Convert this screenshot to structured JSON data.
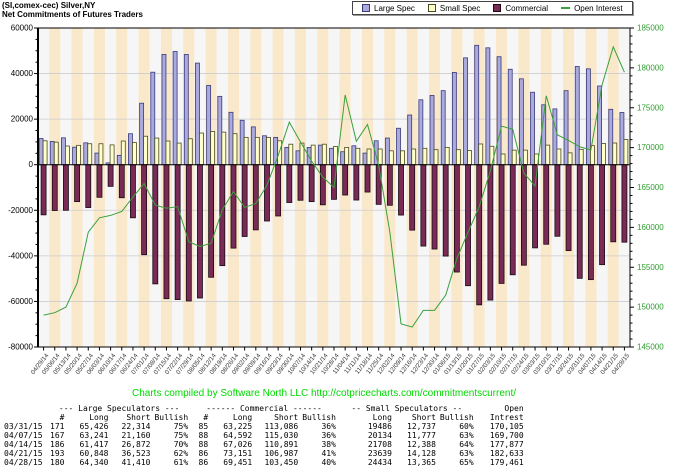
{
  "title": {
    "line1": "(SI,comex-cec) Silver,NY",
    "line2": "Net Commitments of Futures Traders"
  },
  "legend": {
    "items": [
      {
        "label": "Large Spec",
        "color": "#AAAADD",
        "border": "#3A3A7A"
      },
      {
        "label": "Small Spec",
        "color": "#FFFFCC",
        "border": "#4A4A20"
      },
      {
        "label": "Commercial",
        "color": "#7A2B55",
        "border": "#1A0A14"
      },
      {
        "label": "Open Interest",
        "color": "#3CA03C"
      }
    ]
  },
  "footer": "Charts compiled by Software North LLC  http://cotpricecharts.com/commitmentscurrent/",
  "chart_data": {
    "type": "bar",
    "title": "Net Commitments of Futures Traders",
    "xlabel": "",
    "ylabel": "",
    "legend_position": "top-right",
    "grid": true,
    "categories": [
      "04/29/14",
      "05/06/14",
      "05/13/14",
      "05/20/14",
      "05/27/14",
      "06/03/14",
      "06/10/14",
      "06/17/14",
      "06/24/14",
      "07/01/14",
      "07/08/14",
      "07/15/14",
      "07/22/14",
      "07/29/14",
      "08/05/14",
      "08/12/14",
      "08/19/14",
      "08/26/14",
      "09/02/14",
      "09/09/14",
      "09/16/14",
      "09/23/14",
      "09/30/14",
      "10/07/14",
      "10/14/14",
      "10/21/14",
      "10/28/14",
      "11/04/14",
      "11/11/14",
      "11/18/14",
      "11/25/14",
      "12/02/14",
      "12/09/14",
      "12/16/14",
      "12/23/14",
      "12/30/14",
      "01/06/15",
      "01/13/15",
      "01/20/15",
      "01/27/15",
      "02/03/15",
      "02/10/15",
      "02/17/15",
      "02/24/15",
      "03/03/15",
      "03/10/15",
      "03/17/15",
      "03/24/15",
      "03/31/15",
      "04/07/15",
      "04/14/15",
      "04/21/15",
      "04/28/15"
    ],
    "series": [
      {
        "name": "Large Spec",
        "color": "#AAAADD",
        "border": "#3A3A7A",
        "values": [
          11500,
          10200,
          11800,
          7700,
          9600,
          5100,
          800,
          4100,
          13600,
          27000,
          40600,
          48400,
          49700,
          48400,
          44600,
          34800,
          30000,
          23000,
          19500,
          16600,
          12700,
          12000,
          7600,
          6100,
          7600,
          8600,
          7200,
          5700,
          8300,
          5100,
          10500,
          11700,
          16000,
          21800,
          28500,
          30400,
          32500,
          40500,
          46900,
          52400,
          51300,
          47400,
          41900,
          37700,
          31800,
          26300,
          24500,
          32500,
          43112,
          42081,
          34545,
          24325,
          22930
        ]
      },
      {
        "name": "Small Spec",
        "color": "#FFFFCC",
        "border": "#4A4A20",
        "values": [
          10500,
          9900,
          8200,
          8500,
          9200,
          9200,
          8700,
          10400,
          9700,
          12500,
          11700,
          10400,
          9500,
          11400,
          13900,
          14600,
          14300,
          13600,
          12000,
          12000,
          12000,
          10500,
          9000,
          9500,
          8600,
          9000,
          8000,
          7600,
          7200,
          6900,
          6900,
          6100,
          6100,
          6900,
          7200,
          6600,
          7600,
          6600,
          6200,
          9100,
          8100,
          4700,
          6400,
          6400,
          4700,
          8600,
          6900,
          5200,
          6749,
          8357,
          9320,
          9511,
          11069
        ]
      },
      {
        "name": "Commercial",
        "color": "#7A2B55",
        "border": "#1A0A14",
        "values": [
          -22000,
          -20100,
          -20000,
          -16200,
          -18800,
          -14300,
          -9500,
          -14500,
          -23300,
          -39500,
          -52300,
          -58800,
          -59200,
          -59800,
          -58500,
          -49400,
          -44300,
          -36600,
          -31500,
          -28600,
          -24700,
          -22500,
          -16600,
          -15600,
          -16200,
          -17600,
          -15200,
          -13300,
          -15500,
          -12000,
          -17400,
          -17800,
          -22100,
          -28700,
          -35700,
          -37000,
          -40100,
          -47100,
          -53100,
          -61500,
          -59400,
          -52100,
          -48300,
          -44100,
          -36500,
          -34900,
          -31400,
          -37700,
          -49861,
          -50438,
          -43865,
          -33836,
          -33999
        ]
      }
    ],
    "line_series": {
      "name": "Open Interest",
      "color": "#3CA03C",
      "axis": "right",
      "values": [
        149000,
        149300,
        150000,
        153000,
        159400,
        161200,
        161500,
        162000,
        163800,
        165500,
        162800,
        162400,
        162600,
        158200,
        157600,
        158000,
        162200,
        164500,
        162500,
        163000,
        165300,
        169000,
        173200,
        170700,
        168300,
        166300,
        165000,
        176600,
        170800,
        172900,
        167800,
        159400,
        147900,
        147500,
        149600,
        149600,
        151500,
        156100,
        159400,
        162600,
        167100,
        172700,
        172300,
        166800,
        165200,
        176500,
        171600,
        170900,
        170105,
        169700,
        177877,
        182633,
        179461
      ]
    },
    "left_axis": {
      "min": -80000,
      "max": 60000,
      "major_step": 20000,
      "minor_step": 5000,
      "tick_labels": [
        "60000",
        "40000",
        "20000",
        "0",
        "-20000",
        "-40000",
        "-60000",
        "-80000"
      ],
      "label_color": "#000000"
    },
    "right_axis": {
      "min": 145000,
      "max": 185000,
      "major_step": 5000,
      "minor_step": 1000,
      "tick_labels": [
        "185000",
        "180000",
        "175000",
        "170000",
        "165000",
        "160000",
        "155000",
        "150000",
        "145000"
      ],
      "label_color": "#2E9E2E"
    },
    "plot": {
      "stripe_colors": [
        "#F6F6F6",
        "#FAE8CB"
      ],
      "grid_color": "#CCCCCC",
      "zero_line_color": "#000000",
      "date_label_color": "#333333"
    }
  },
  "table": {
    "group_headers": [
      "",
      "--- Large Speculators ---",
      "------ Commercial ------",
      "-- Small Speculators --",
      "Open"
    ],
    "col_headers": [
      "",
      "#",
      "Long",
      "Short",
      "Bullish",
      "#",
      "Long",
      "Short",
      "Bullish",
      "Long",
      "Short",
      "Bullish",
      "Intrest"
    ],
    "rows": [
      [
        "03/31/15",
        "171",
        "65,426",
        "22,314",
        "75%",
        "85",
        "63,225",
        "113,086",
        "36%",
        "19486",
        "12,737",
        "60%",
        "170,105"
      ],
      [
        "04/07/15",
        "167",
        "63,241",
        "21,160",
        "75%",
        "88",
        "64,592",
        "115,030",
        "36%",
        "20134",
        "11,777",
        "63%",
        "169,700"
      ],
      [
        "04/14/15",
        "186",
        "61,417",
        "26,872",
        "70%",
        "88",
        "67,026",
        "110,891",
        "38%",
        "21708",
        "12,388",
        "64%",
        "177,877"
      ],
      [
        "04/21/15",
        "193",
        "60,848",
        "36,523",
        "62%",
        "86",
        "73,151",
        "106,987",
        "41%",
        "23639",
        "14,128",
        "63%",
        "182,633"
      ],
      [
        "04/28/15",
        "180",
        "64,340",
        "41,410",
        "61%",
        "86",
        "69,451",
        "103,450",
        "40%",
        "24434",
        "13,365",
        "65%",
        "179,461"
      ]
    ]
  }
}
